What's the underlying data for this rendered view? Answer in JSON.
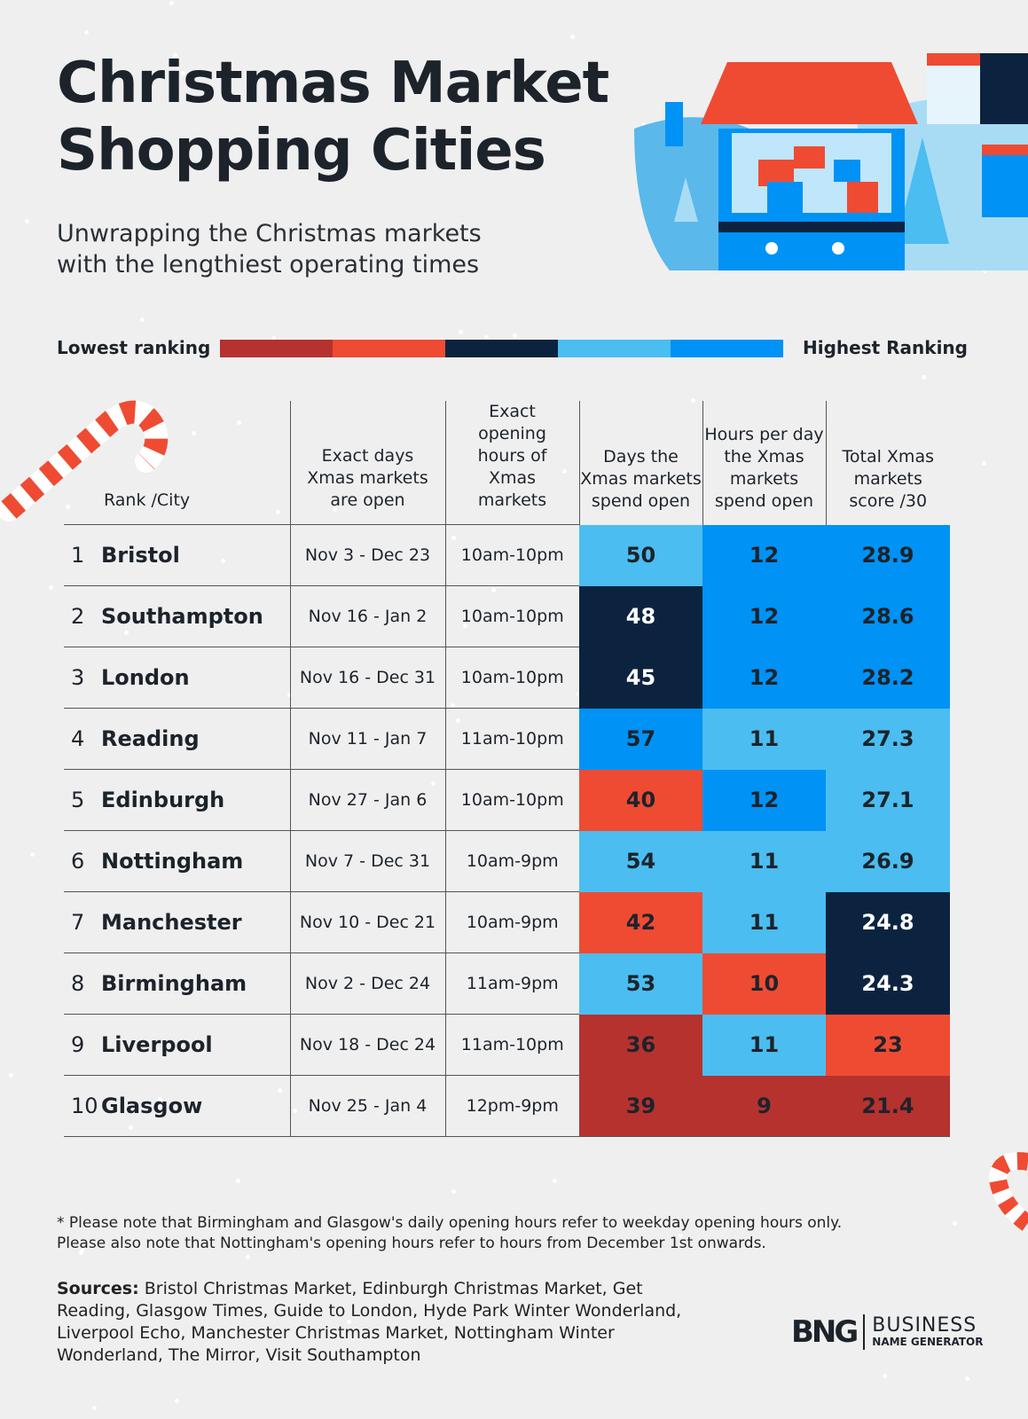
{
  "title_line1": "Christmas Market",
  "title_line2": "Shopping Cities",
  "subtitle_line1": "Unwrapping the Christmas markets",
  "subtitle_line2": "with the lengthiest operating times",
  "legend": {
    "low_label": "Lowest ranking",
    "high_label": "Highest Ranking",
    "colors": [
      "#b5322f",
      "#ef4b33",
      "#0c2340",
      "#4bbdf0",
      "#0092f5"
    ]
  },
  "chart_data": {
    "type": "table",
    "columns": [
      "Rank /City",
      "Exact days Xmas markets are open",
      "Exact opening hours of Xmas markets",
      "Days the Xmas markets spend open",
      "Hours per day the Xmas markets spend open",
      "Total Xmas markets score /30"
    ],
    "rows": [
      {
        "rank": "1",
        "city": "Bristol",
        "dates": "Nov 3 - Dec 23",
        "hours": "10am-10pm",
        "days": "50",
        "hpd": "12",
        "score": "28.9",
        "days_level": 4,
        "hpd_level": 5,
        "score_level": 5
      },
      {
        "rank": "2",
        "city": "Southampton",
        "dates": "Nov 16 - Jan 2",
        "hours": "10am-10pm",
        "days": "48",
        "hpd": "12",
        "score": "28.6",
        "days_level": 3,
        "hpd_level": 5,
        "score_level": 5
      },
      {
        "rank": "3",
        "city": "London",
        "dates": "Nov 16 - Dec 31",
        "hours": "10am-10pm",
        "days": "45",
        "hpd": "12",
        "score": "28.2",
        "days_level": 3,
        "hpd_level": 5,
        "score_level": 5
      },
      {
        "rank": "4",
        "city": "Reading",
        "dates": "Nov 11 - Jan 7",
        "hours": "11am-10pm",
        "days": "57",
        "hpd": "11",
        "score": "27.3",
        "days_level": 5,
        "hpd_level": 4,
        "score_level": 4
      },
      {
        "rank": "5",
        "city": "Edinburgh",
        "dates": "Nov 27 - Jan 6",
        "hours": "10am-10pm",
        "days": "40",
        "hpd": "12",
        "score": "27.1",
        "days_level": 2,
        "hpd_level": 5,
        "score_level": 4
      },
      {
        "rank": "6",
        "city": "Nottingham",
        "dates": "Nov 7 - Dec 31",
        "hours": "10am-9pm",
        "days": "54",
        "hpd": "11",
        "score": "26.9",
        "days_level": 4,
        "hpd_level": 4,
        "score_level": 4
      },
      {
        "rank": "7",
        "city": "Manchester",
        "dates": "Nov 10 - Dec 21",
        "hours": "10am-9pm",
        "days": "42",
        "hpd": "11",
        "score": "24.8",
        "days_level": 2,
        "hpd_level": 4,
        "score_level": 3
      },
      {
        "rank": "8",
        "city": "Birmingham",
        "dates": "Nov 2 - Dec 24",
        "hours": "11am-9pm",
        "days": "53",
        "hpd": "10",
        "score": "24.3",
        "days_level": 4,
        "hpd_level": 2,
        "score_level": 3
      },
      {
        "rank": "9",
        "city": "Liverpool",
        "dates": "Nov 18 - Dec 24",
        "hours": "11am-10pm",
        "days": "36",
        "hpd": "11",
        "score": "23",
        "days_level": 1,
        "hpd_level": 4,
        "score_level": 2
      },
      {
        "rank": "10",
        "city": "Glasgow",
        "dates": "Nov 25 - Jan 4",
        "hours": "12pm-9pm",
        "days": "39",
        "hpd": "9",
        "score": "21.4",
        "days_level": 1,
        "hpd_level": 1,
        "score_level": 1
      }
    ]
  },
  "note_line1": "* Please note that Birmingham and Glasgow's daily opening hours refer to weekday opening hours only.",
  "note_line2": "Please also note that Nottingham's opening hours refer to hours from December 1st onwards.",
  "sources_label": "Sources:",
  "sources_text": "Bristol Christmas Market, Edinburgh Christmas Market, Get Reading, Glasgow Times, Guide to London, Hyde Park Winter Wonderland, Liverpool Echo, Manchester Christmas Market, Nottingham Winter Wonderland, The Mirror, Visit Southampton",
  "logo": {
    "mark": "BNG",
    "word": "BUSINESS",
    "sub": "NAME GENERATOR"
  }
}
